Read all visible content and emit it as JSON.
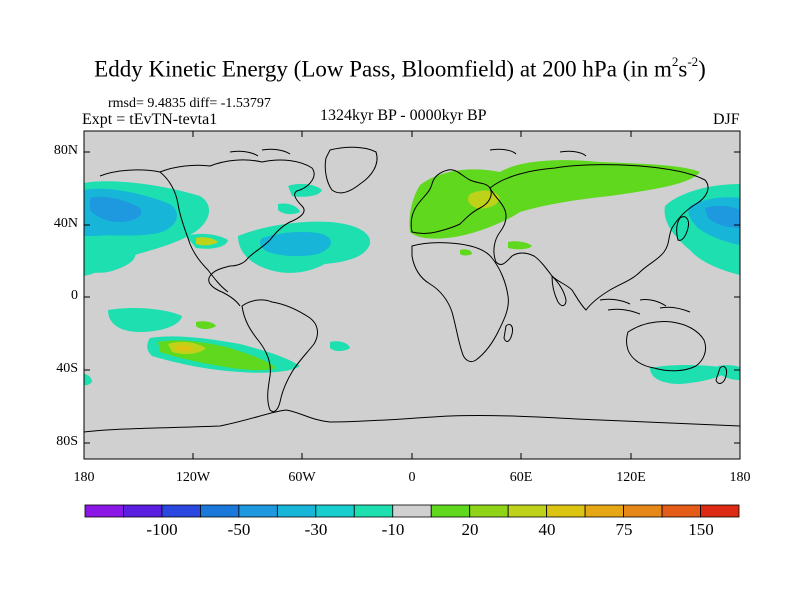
{
  "title": {
    "main": "Eddy Kinetic Energy (Low Pass, Bloomfield) at 200 hPa (in m",
    "sup1": "2",
    "s": "s",
    "sup2": "-2",
    "close": ")"
  },
  "stats": "rmsd= 9.4835 diff= -1.53797",
  "experiment": "Expt = tEvTN-tevta1",
  "period": "1324kyr BP - 0000kyr BP",
  "season": "DJF",
  "map": {
    "lat_labels": [
      "80N",
      "40N",
      "0",
      "40S",
      "80S"
    ],
    "lon_labels": [
      "180",
      "120W",
      "60W",
      "0",
      "60E",
      "120E",
      "180"
    ],
    "background_color": "#d0d0d0"
  },
  "colorbar": {
    "colors": [
      "#8a17e6",
      "#5a1fe0",
      "#2a48e0",
      "#1a78da",
      "#1e98de",
      "#17b6d8",
      "#18cdcd",
      "#1ddfb0",
      "#d0d0d0",
      "#5fd81d",
      "#90d41a",
      "#bed21a",
      "#dcc512",
      "#e5a814",
      "#e58818",
      "#e55c18",
      "#dd2a14"
    ],
    "labels": [
      "-100",
      "-50",
      "-30",
      "-10",
      "20",
      "40",
      "75",
      "150"
    ]
  }
}
